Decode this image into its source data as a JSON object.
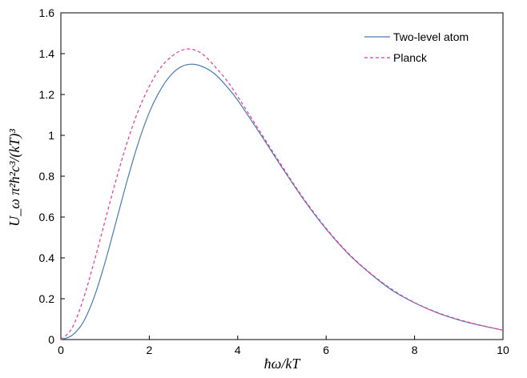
{
  "chart_data": {
    "type": "line",
    "title": "",
    "xlabel": "ħω/kT",
    "ylabel": "U_ω π²ħ²c³/(kT)³",
    "xlim": [
      0,
      10
    ],
    "ylim": [
      0,
      1.6
    ],
    "x_ticks": [
      0,
      2,
      4,
      6,
      8,
      10
    ],
    "x_tick_labels": [
      "0",
      "2",
      "4",
      "6",
      "8",
      "10"
    ],
    "y_ticks": [
      0,
      0.2,
      0.4,
      0.6,
      0.8,
      1.0,
      1.2,
      1.4,
      1.6
    ],
    "y_tick_labels": [
      "0",
      "0.2",
      "0.4",
      "0.6",
      "0.8",
      "1",
      "1.2",
      "1.4",
      "1.6"
    ],
    "grid": false,
    "legend": "top-right",
    "x": [
      0,
      0.25,
      0.5,
      0.75,
      1,
      1.25,
      1.5,
      1.75,
      2,
      2.25,
      2.5,
      2.75,
      3,
      3.25,
      3.5,
      3.75,
      4,
      4.5,
      5,
      5.5,
      6,
      6.5,
      7,
      7.5,
      8,
      8.5,
      9,
      9.5,
      10
    ],
    "series": [
      {
        "name": "Two-level atom",
        "color": "#4a7bb0",
        "dash": "solid",
        "values": [
          0,
          0.02,
          0.083,
          0.206,
          0.378,
          0.578,
          0.779,
          0.962,
          1.112,
          1.222,
          1.298,
          1.339,
          1.348,
          1.332,
          1.297,
          1.24,
          1.172,
          1.01,
          0.843,
          0.683,
          0.541,
          0.42,
          0.323,
          0.24,
          0.18,
          0.132,
          0.096,
          0.069,
          0.046
        ]
      },
      {
        "name": "Planck",
        "color": "#e8389a",
        "dash": "dashed",
        "values": [
          0,
          0.055,
          0.193,
          0.379,
          0.582,
          0.783,
          0.966,
          1.12,
          1.24,
          1.33,
          1.385,
          1.418,
          1.42,
          1.39,
          1.333,
          1.27,
          1.19,
          1.02,
          0.85,
          0.688,
          0.545,
          0.423,
          0.325,
          0.244,
          0.181,
          0.134,
          0.098,
          0.07,
          0.046
        ]
      }
    ]
  }
}
